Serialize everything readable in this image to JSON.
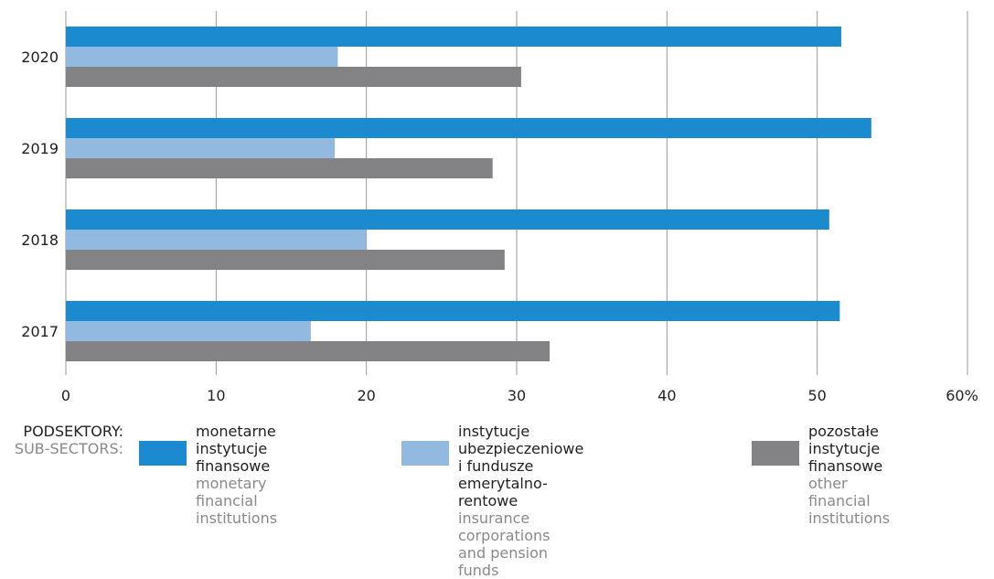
{
  "chart_data": {
    "type": "bar",
    "orientation": "horizontal",
    "categories": [
      "2020",
      "2019",
      "2018",
      "2017"
    ],
    "series": [
      {
        "name": "monetarne instytucje finansowe",
        "values": [
          51.6,
          53.6,
          50.8,
          51.5
        ],
        "color": "#1b8acf"
      },
      {
        "name": "instytucje ubezpieczeniowe i fundusze emerytalno-rentowe",
        "values": [
          18.1,
          17.9,
          20.0,
          16.3
        ],
        "color": "#92b9e0"
      },
      {
        "name": "pozostałe instytucje finansowe",
        "values": [
          30.3,
          28.4,
          29.2,
          32.2
        ],
        "color": "#838385"
      }
    ],
    "xlim": [
      0,
      60
    ],
    "x_ticks": [
      "0",
      "10",
      "20",
      "30",
      "40",
      "50",
      "60%"
    ],
    "grid": "vertical"
  },
  "legend": {
    "heading_pl": "PODSEKTORY:",
    "heading_en": "SUB-SECTORS:",
    "items": [
      {
        "pl_lines": [
          "monetarne",
          "instytucje finansowe"
        ],
        "en_lines": [
          "monetary financial",
          "institutions"
        ],
        "color": "#1b8acf"
      },
      {
        "pl_lines": [
          "instytucje ubezpieczeniowe",
          "i fundusze emerytalno-rentowe"
        ],
        "en_lines": [
          "insurance corporations",
          "and pension funds"
        ],
        "color": "#92b9e0"
      },
      {
        "pl_lines": [
          "pozostałe instytucje",
          "finansowe"
        ],
        "en_lines": [
          "other financial",
          "institutions"
        ],
        "color": "#838385"
      }
    ]
  }
}
